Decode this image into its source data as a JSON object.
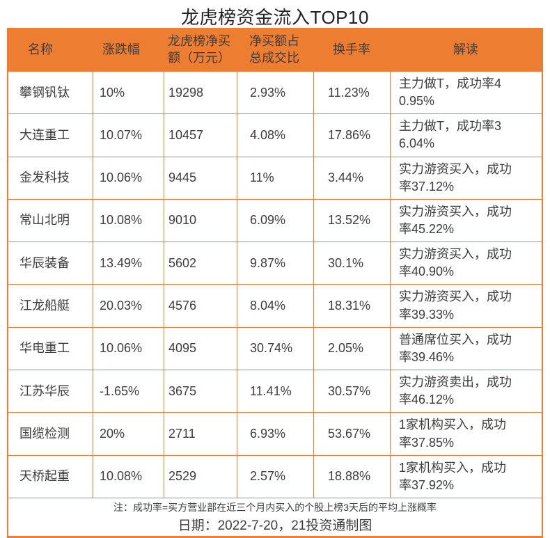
{
  "title": "龙虎榜资金流入TOP10",
  "colors": {
    "accent": "#ED7D31",
    "header_text": "#FFFFFF",
    "body_text": "#3D3D3D"
  },
  "chart_data": {
    "type": "table",
    "title": "龙虎榜资金流入TOP10",
    "columns": [
      "名称",
      "涨跌幅",
      "龙虎榜净买\n额（万元）",
      "净买额占\n总成交比",
      "换手率",
      "解读"
    ],
    "rows": [
      {
        "name": "攀钢钒钛",
        "change_pct": "10%",
        "net_buy_wan": "19298",
        "net_buy_to_turnover": "2.93%",
        "turnover_rate": "11.23%",
        "interpretation": "主力做T，成功率4\n0.95%"
      },
      {
        "name": "大连重工",
        "change_pct": "10.07%",
        "net_buy_wan": "10457",
        "net_buy_to_turnover": "4.08%",
        "turnover_rate": "17.86%",
        "interpretation": "主力做T，成功率3\n6.04%"
      },
      {
        "name": "金发科技",
        "change_pct": "10.06%",
        "net_buy_wan": "9445",
        "net_buy_to_turnover": "11%",
        "turnover_rate": "3.44%",
        "interpretation": "实力游资买入，成功\n率37.12%"
      },
      {
        "name": "常山北明",
        "change_pct": "10.08%",
        "net_buy_wan": "9010",
        "net_buy_to_turnover": "6.09%",
        "turnover_rate": "13.52%",
        "interpretation": "实力游资买入，成功\n率45.22%"
      },
      {
        "name": "华辰装备",
        "change_pct": "13.49%",
        "net_buy_wan": "5602",
        "net_buy_to_turnover": "9.87%",
        "turnover_rate": "30.1%",
        "interpretation": "实力游资买入，成功\n率40.90%"
      },
      {
        "name": "江龙船艇",
        "change_pct": "20.03%",
        "net_buy_wan": "4576",
        "net_buy_to_turnover": "8.04%",
        "turnover_rate": "18.31%",
        "interpretation": "实力游资买入，成功\n率39.33%"
      },
      {
        "name": "华电重工",
        "change_pct": "10.06%",
        "net_buy_wan": "4095",
        "net_buy_to_turnover": "30.74%",
        "turnover_rate": "2.05%",
        "interpretation": "普通席位买入，成功\n率39.46%"
      },
      {
        "name": "江苏华辰",
        "change_pct": "-1.65%",
        "net_buy_wan": "3675",
        "net_buy_to_turnover": "11.41%",
        "turnover_rate": "30.57%",
        "interpretation": "实力游资卖出，成功\n率46.12%"
      },
      {
        "name": "国缆检测",
        "change_pct": "20%",
        "net_buy_wan": "2711",
        "net_buy_to_turnover": "6.93%",
        "turnover_rate": "53.67%",
        "interpretation": "1家机构买入，成功\n率37.85%"
      },
      {
        "name": "天桥起重",
        "change_pct": "10.08%",
        "net_buy_wan": "2529",
        "net_buy_to_turnover": "2.57%",
        "turnover_rate": "18.88%",
        "interpretation": "1家机构买入，成功\n率37.92%"
      }
    ],
    "footnote": "注：成功率=买方营业部在近三个月内买入的个股上榜3天后的平均上涨概率",
    "date_line": "日期：2022-7-20，21投资通制图"
  }
}
